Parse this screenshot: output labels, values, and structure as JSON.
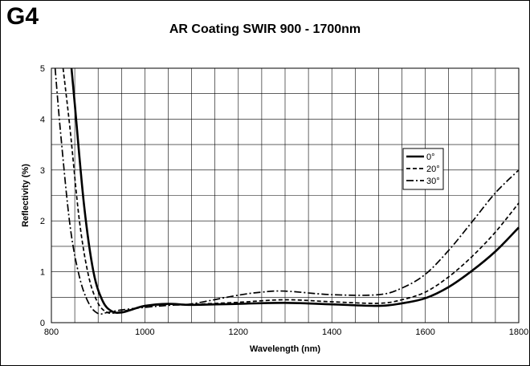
{
  "figure_tag": "G4",
  "chart_data": {
    "type": "line",
    "title": "AR Coating SWIR 900 - 1700nm",
    "xlabel": "Wavelength (nm)",
    "ylabel": "Reflectivity (%)",
    "xlim": [
      800,
      1800
    ],
    "ylim": [
      0,
      5
    ],
    "x_ticks": [
      800,
      1000,
      1200,
      1400,
      1600,
      1800
    ],
    "y_ticks": [
      0,
      1,
      2,
      3,
      4,
      5
    ],
    "grid": true,
    "legend_position": "right-center",
    "series": [
      {
        "name": "0°",
        "style": "solid",
        "color": "#000000",
        "x": [
          843,
          850,
          870,
          890,
          910,
          930,
          950,
          970,
          1000,
          1050,
          1100,
          1200,
          1300,
          1400,
          1500,
          1550,
          1600,
          1650,
          1700,
          1750,
          1800
        ],
        "y": [
          5.0,
          4.3,
          2.3,
          1.0,
          0.42,
          0.22,
          0.2,
          0.25,
          0.33,
          0.37,
          0.35,
          0.37,
          0.39,
          0.36,
          0.33,
          0.38,
          0.48,
          0.7,
          1.02,
          1.4,
          1.87
        ]
      },
      {
        "name": "20°",
        "style": "dashed",
        "color": "#000000",
        "x": [
          825,
          840,
          860,
          880,
          900,
          920,
          940,
          970,
          1000,
          1050,
          1100,
          1200,
          1300,
          1400,
          1500,
          1550,
          1600,
          1650,
          1700,
          1750,
          1800
        ],
        "y": [
          5.0,
          3.8,
          2.0,
          0.9,
          0.38,
          0.2,
          0.2,
          0.26,
          0.32,
          0.36,
          0.36,
          0.4,
          0.45,
          0.41,
          0.38,
          0.45,
          0.6,
          0.9,
          1.3,
          1.78,
          2.35
        ]
      },
      {
        "name": "30°",
        "style": "dashdot",
        "color": "#000000",
        "x": [
          808,
          820,
          840,
          860,
          880,
          900,
          920,
          950,
          1000,
          1050,
          1100,
          1200,
          1250,
          1300,
          1400,
          1500,
          1550,
          1600,
          1650,
          1700,
          1750,
          1800
        ],
        "y": [
          5.0,
          3.7,
          1.9,
          0.9,
          0.38,
          0.18,
          0.2,
          0.25,
          0.3,
          0.34,
          0.37,
          0.54,
          0.6,
          0.62,
          0.55,
          0.55,
          0.68,
          0.95,
          1.42,
          1.98,
          2.55,
          3.0
        ]
      }
    ]
  }
}
